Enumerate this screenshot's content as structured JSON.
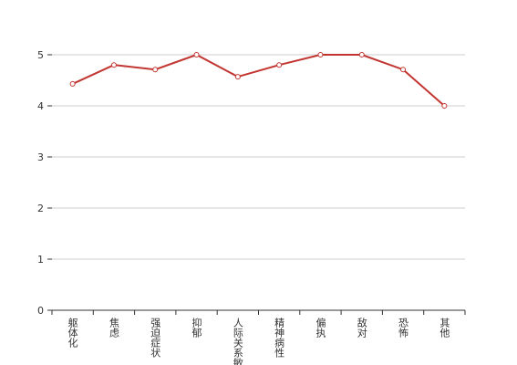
{
  "chart_data": {
    "type": "line",
    "categories": [
      "躯体化",
      "焦虑",
      "强迫症状",
      "抑郁",
      "人际关系敏感",
      "精神病性",
      "偏执",
      "敌对",
      "恐怖",
      "其他"
    ],
    "values": [
      4.43,
      4.8,
      4.71,
      5.0,
      4.57,
      4.8,
      5.0,
      5.0,
      4.71,
      4.0
    ],
    "color": "#c23531",
    "ylim": [
      0,
      5
    ],
    "yticks": [
      0,
      1,
      2,
      3,
      4,
      5
    ],
    "grid": true
  }
}
